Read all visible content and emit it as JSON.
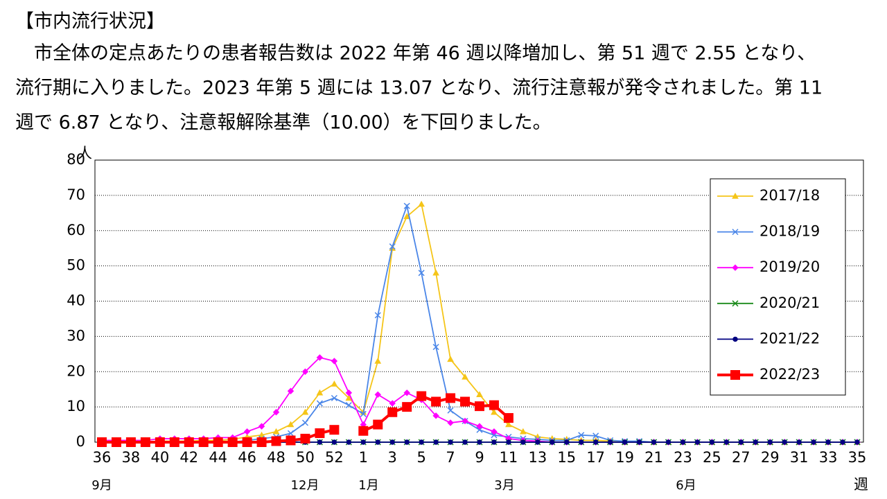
{
  "header": {
    "title": "【市内流行状況】",
    "lines": [
      "　市全体の定点あたりの患者報告数は 2022 年第 46 週以降増加し、第 51 週で 2.55 となり、",
      "流行期に入りました。2023 年第 5 週には 13.07 となり、流行注意報が発令されました。第 11",
      "週で 6.87 となり、注意報解除基準（10.00）を下回りました。"
    ]
  },
  "chart_data": {
    "type": "line",
    "y_unit": "人",
    "x_unit": "週",
    "month_labels": [
      "9月",
      "12月",
      "1月",
      "3月",
      "6月"
    ],
    "categories": [
      "36",
      null,
      "38",
      null,
      "40",
      null,
      "42",
      null,
      "44",
      null,
      "46",
      null,
      "48",
      null,
      "50",
      null,
      "52",
      null,
      "1",
      null,
      "3",
      null,
      "5",
      null,
      "7",
      null,
      "9",
      null,
      "11",
      null,
      "13",
      null,
      "15",
      null,
      "17",
      null,
      "19",
      null,
      "21",
      null,
      "23",
      null,
      "25",
      null,
      "27",
      null,
      "29",
      null,
      "31",
      null,
      "33",
      null,
      "35"
    ],
    "ylim": [
      0,
      80
    ],
    "yticks": [
      0,
      10,
      20,
      30,
      40,
      50,
      60,
      70,
      80
    ],
    "grid": true,
    "series": [
      {
        "name": "2017/18",
        "color": "#f5c518",
        "marker": "triangle",
        "values": [
          0,
          0,
          0,
          0,
          0.3,
          0.3,
          0.3,
          0.5,
          0.5,
          0.8,
          1.5,
          2,
          3,
          5,
          8.5,
          14,
          16.5,
          12.5,
          8.5,
          23,
          55,
          64,
          67.5,
          48,
          23.5,
          18.5,
          13.5,
          8.5,
          5,
          3,
          1.5,
          1,
          0.8,
          0.5,
          0.5,
          0.3,
          0,
          0,
          0,
          0,
          0,
          0,
          0,
          0,
          0,
          0,
          0,
          0,
          0,
          0,
          0,
          0,
          0
        ]
      },
      {
        "name": "2018/19",
        "color": "#4a86e8",
        "marker": "x",
        "values": [
          0,
          0,
          0,
          0,
          0,
          0,
          0,
          0,
          0,
          0,
          0.5,
          1,
          1.5,
          2.5,
          5.5,
          11,
          12.5,
          10.5,
          8,
          36,
          55.5,
          67,
          48,
          27,
          9,
          6,
          3.5,
          2,
          1.5,
          1,
          0.8,
          0.5,
          0.5,
          2,
          1.8,
          0.5,
          0.3,
          0.3,
          0,
          0,
          0,
          0,
          0,
          0,
          0,
          0,
          0,
          0,
          0,
          0,
          0,
          0,
          0
        ]
      },
      {
        "name": "2019/20",
        "color": "#ff00ff",
        "marker": "diamond",
        "values": [
          0.5,
          0.5,
          0.5,
          0.5,
          1,
          1,
          1,
          1,
          1.3,
          1.3,
          3,
          4.5,
          8.5,
          14.5,
          20,
          24,
          23,
          14,
          5,
          13.5,
          11,
          14,
          12,
          7.5,
          5.5,
          6,
          4.5,
          3,
          1,
          0.5,
          0.3,
          0,
          0,
          0,
          0,
          0,
          0,
          0,
          0,
          0,
          0,
          0,
          0,
          0,
          0,
          0,
          0,
          0,
          0,
          0,
          0,
          0,
          0
        ]
      },
      {
        "name": "2020/21",
        "color": "#1a8a1a",
        "marker": "x",
        "values": [
          0,
          0,
          0,
          0,
          0,
          0,
          0,
          0,
          0,
          0,
          0,
          0,
          0,
          0,
          0,
          0,
          0,
          0,
          0,
          0,
          0,
          0,
          0,
          0,
          0,
          0,
          0,
          0,
          0,
          0,
          0,
          0,
          0,
          0,
          0,
          0,
          0,
          0,
          0,
          0,
          0,
          0,
          0,
          0,
          0,
          0,
          0,
          0,
          0,
          0,
          0,
          0,
          0
        ]
      },
      {
        "name": "2021/22",
        "color": "#000080",
        "marker": "circle",
        "values": [
          0,
          0,
          0,
          0,
          0,
          0,
          0,
          0,
          0,
          0,
          0,
          0,
          0,
          0,
          0,
          0,
          0,
          0,
          0,
          0,
          0,
          0,
          0,
          0,
          0,
          0,
          0,
          0,
          0,
          0,
          0,
          0,
          0,
          0,
          0,
          0,
          0,
          0,
          0,
          0,
          0,
          0,
          0,
          0,
          0,
          0,
          0,
          0,
          0,
          0,
          0,
          0,
          0
        ]
      },
      {
        "name": "2022/23",
        "color": "#ff0000",
        "marker": "square",
        "values": [
          0,
          0,
          0,
          0,
          0,
          0,
          0,
          0,
          0,
          0,
          0,
          0,
          0.3,
          0.5,
          1,
          2.55,
          3.5,
          null,
          3.2,
          5,
          8.5,
          10,
          13.07,
          11.5,
          12.5,
          11.5,
          10.2,
          10.5,
          6.87,
          null,
          null,
          null,
          null,
          null,
          null,
          null,
          null,
          null,
          null,
          null,
          null,
          null,
          null,
          null,
          null,
          null,
          null,
          null,
          null,
          null,
          null,
          null,
          null
        ]
      }
    ]
  }
}
